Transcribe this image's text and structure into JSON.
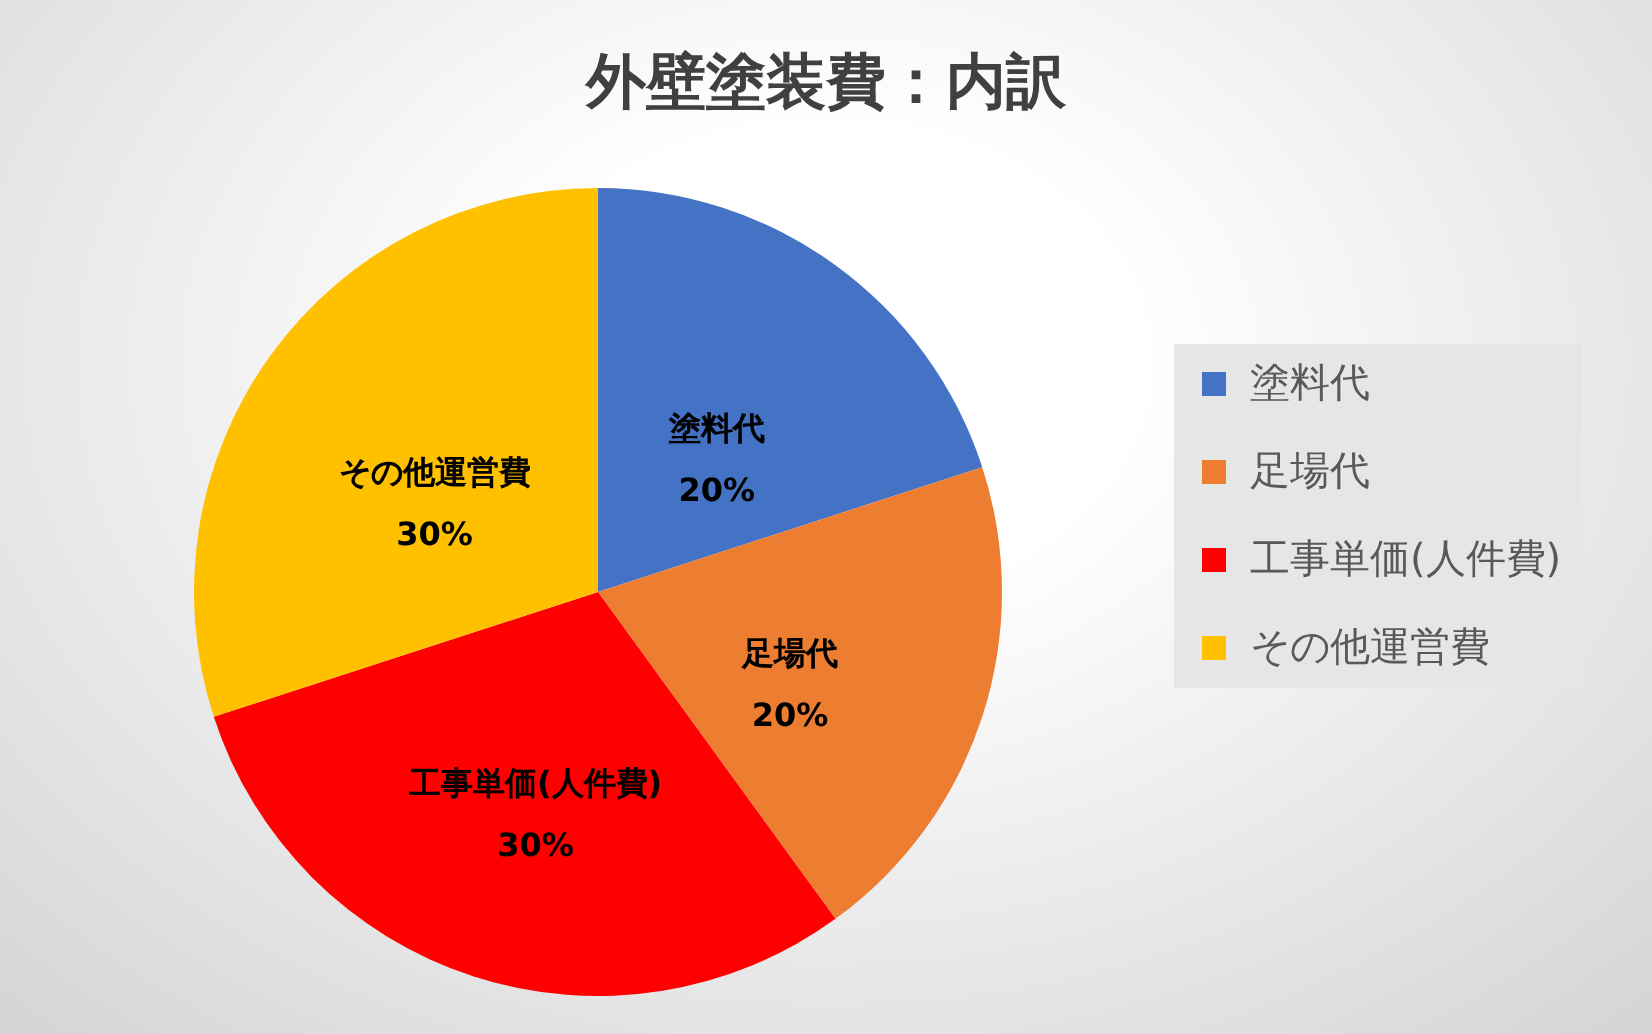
{
  "chart_data": {
    "type": "pie",
    "title": "外壁塗装費：内訳",
    "categories": [
      "塗料代",
      "足場代",
      "工事単価(人件費)",
      "その他運営費"
    ],
    "values": [
      20,
      20,
      30,
      30
    ],
    "colors": [
      "#4472c4",
      "#ed7d31",
      "#ff0000",
      "#ffc000"
    ],
    "value_labels": [
      "20%",
      "20%",
      "30%",
      "30%"
    ],
    "legend": "right"
  }
}
